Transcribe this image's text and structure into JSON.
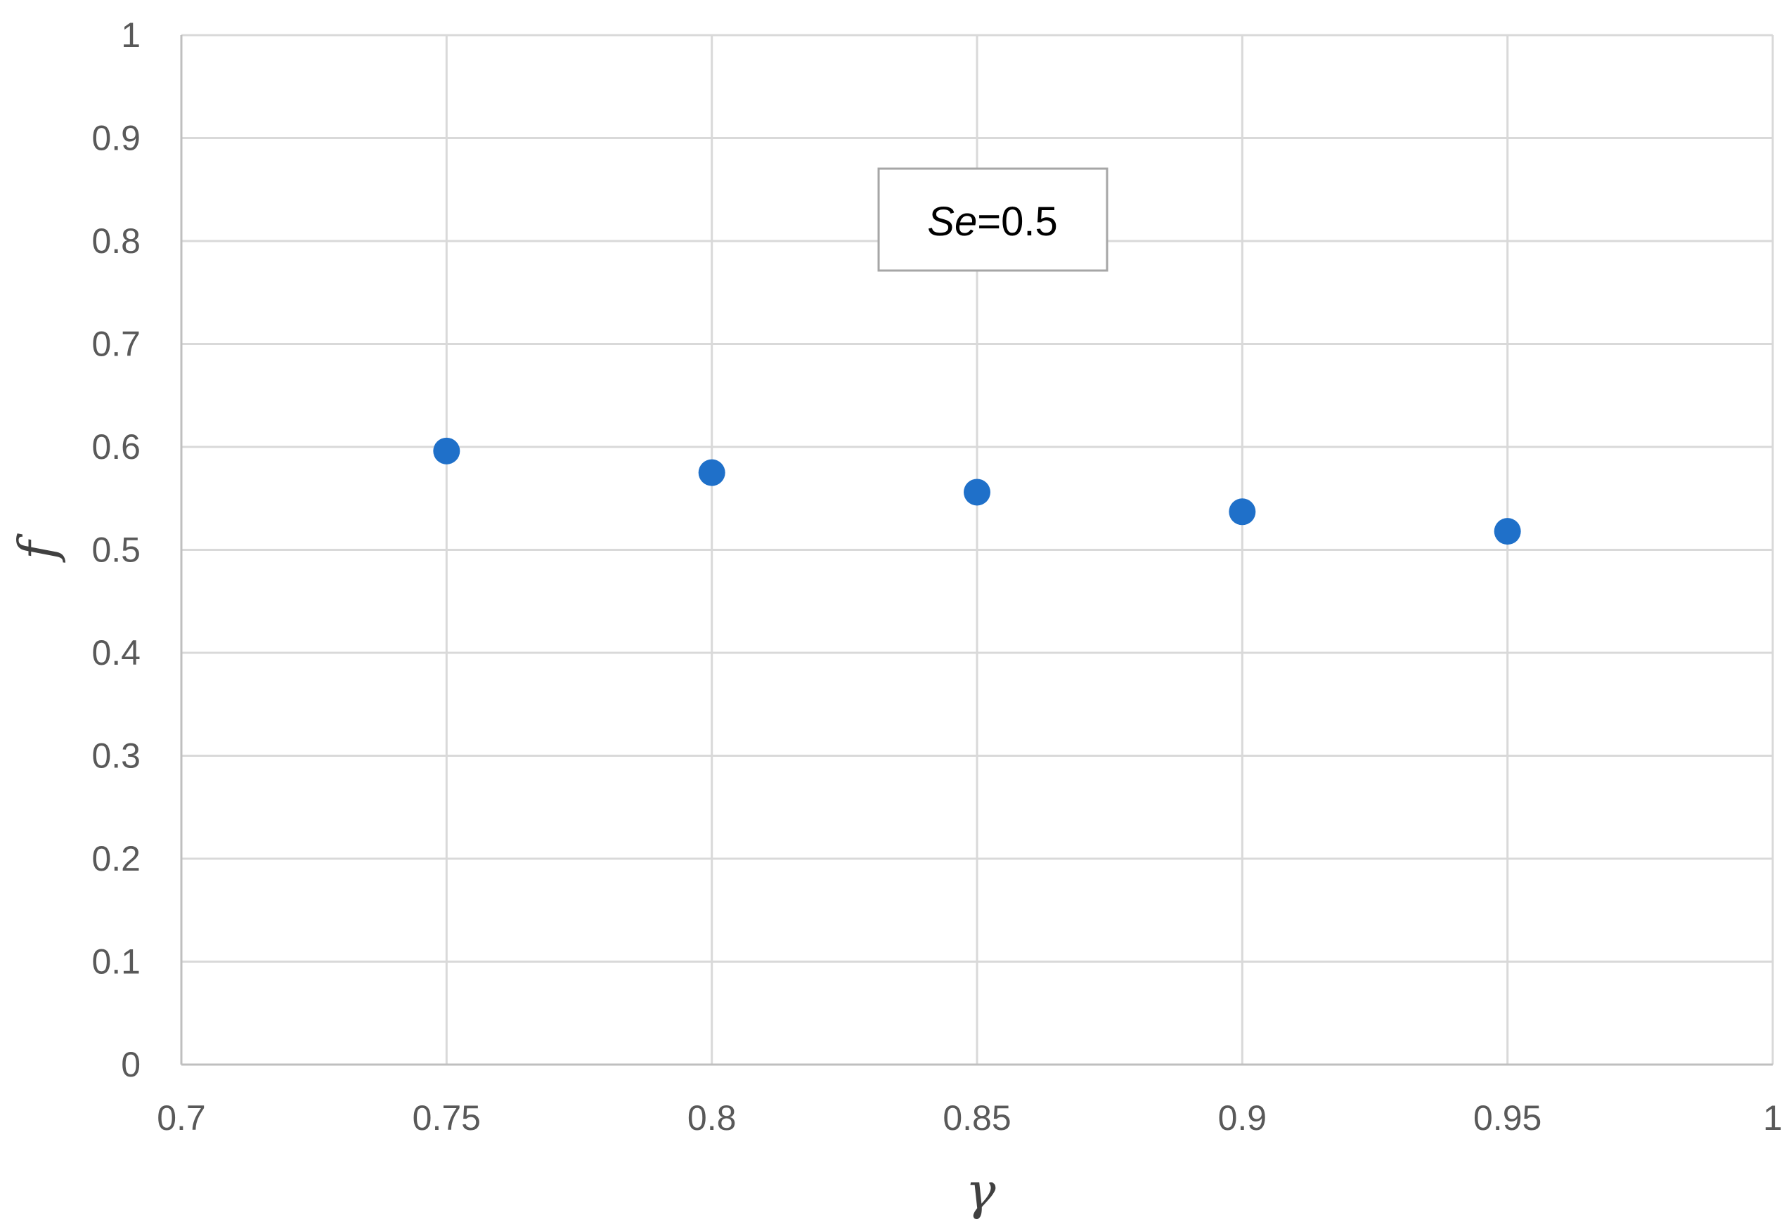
{
  "chart_data": {
    "type": "scatter",
    "title": "",
    "xlabel": "γ",
    "ylabel": "f",
    "xlim": [
      0.7,
      1.0
    ],
    "ylim": [
      0,
      1.0
    ],
    "x_ticks": [
      "0.7",
      "0.75",
      "0.8",
      "0.85",
      "0.9",
      "0.95",
      "1"
    ],
    "y_ticks": [
      "0",
      "0.1",
      "0.2",
      "0.3",
      "0.4",
      "0.5",
      "0.6",
      "0.7",
      "0.8",
      "0.9",
      "1"
    ],
    "grid": true,
    "legend": "none",
    "series": [
      {
        "color": "#1F70C9",
        "points": [
          {
            "x": 0.75,
            "y": 0.596
          },
          {
            "x": 0.8,
            "y": 0.575
          },
          {
            "x": 0.85,
            "y": 0.556
          },
          {
            "x": 0.9,
            "y": 0.537
          },
          {
            "x": 0.95,
            "y": 0.518
          }
        ]
      }
    ],
    "annotation": {
      "var": "Se",
      "rest": "=0.5"
    },
    "grid_color": "#D9D9D9",
    "axis_color": "#BFBFBF",
    "text_color": "#595959"
  }
}
